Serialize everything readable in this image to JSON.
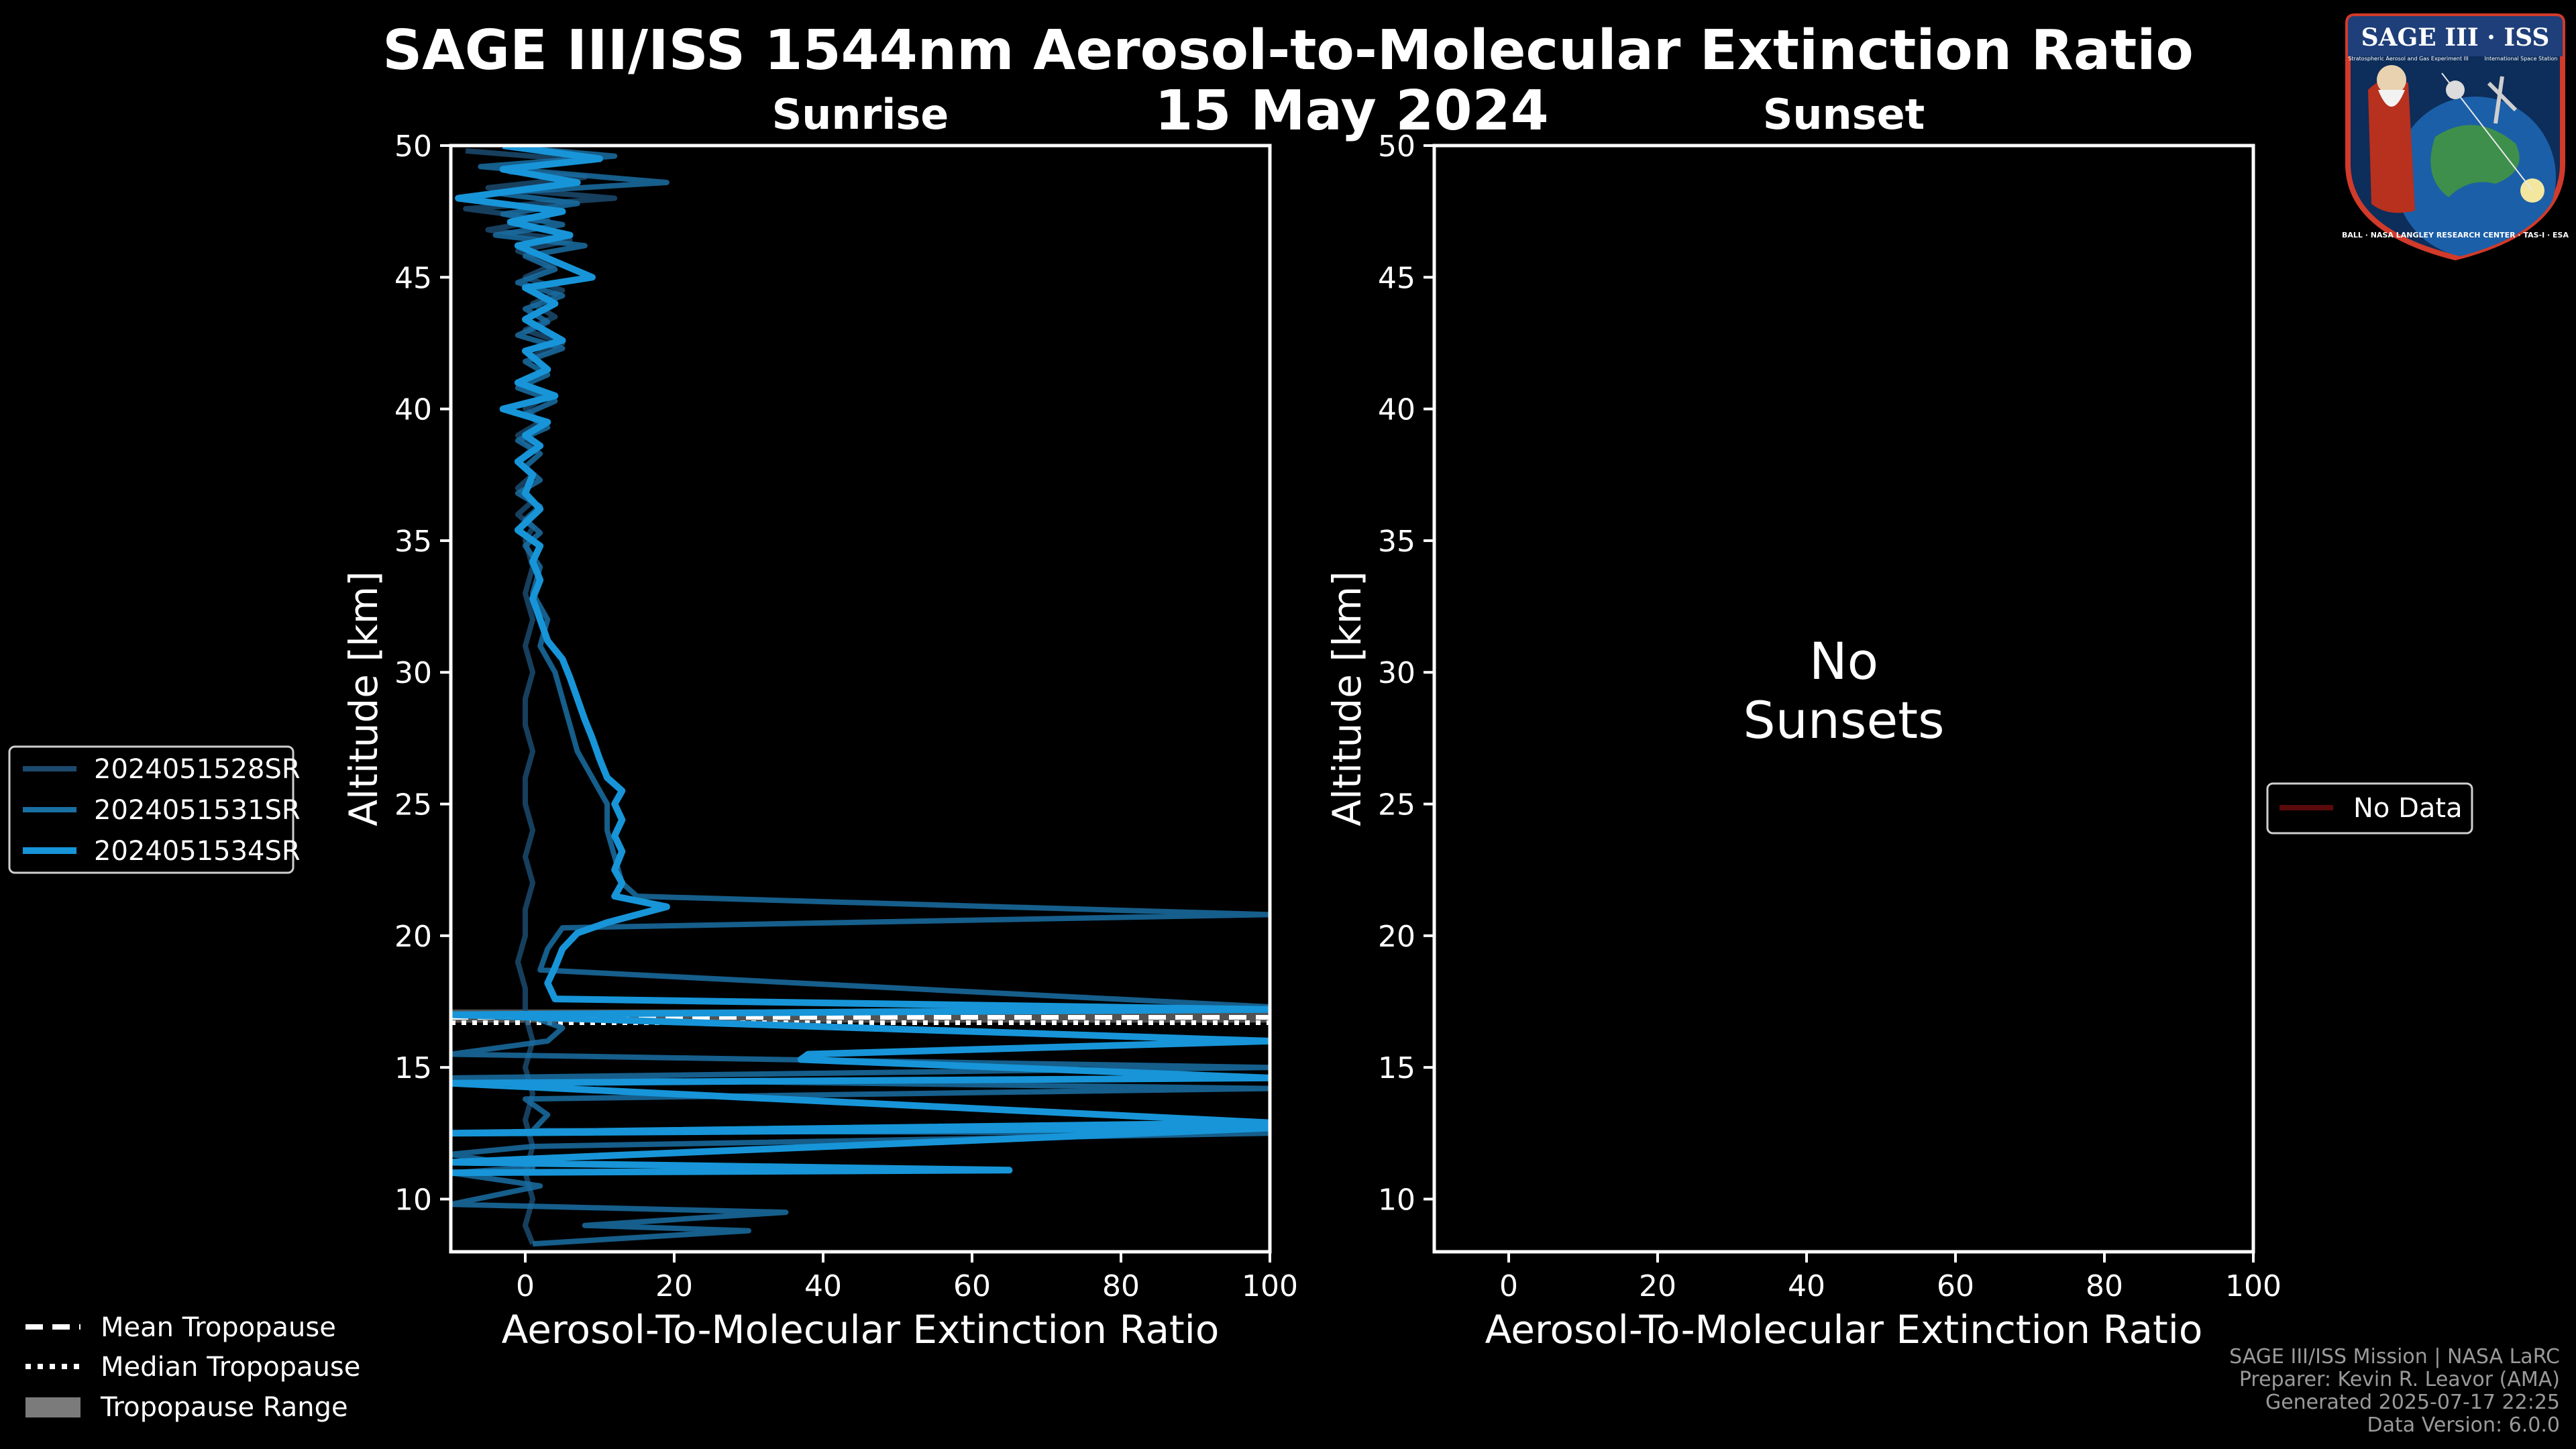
{
  "title": "SAGE III/ISS 1544nm Aerosol-to-Molecular Extinction Ratio",
  "subtitle": "15 May 2024",
  "colors": {
    "background": "#000000",
    "series": [
      "#1b4a6e",
      "#1a6fa3",
      "#1795d8"
    ],
    "no_data": "#5a0a0a",
    "tropopause_range": "#888888"
  },
  "chart_data": [
    {
      "type": "line",
      "title": "Sunrise",
      "xlabel": "Aerosol-To-Molecular Extinction Ratio",
      "ylabel": "Altitude [km]",
      "xlim": [
        -10,
        100
      ],
      "ylim": [
        8,
        50
      ],
      "xticks": [
        0,
        20,
        40,
        60,
        80,
        100
      ],
      "yticks": [
        10,
        15,
        20,
        25,
        30,
        35,
        40,
        45,
        50
      ],
      "legend": [
        "2024051528SR",
        "2024051531SR",
        "2024051534SR"
      ],
      "legend_location": "left",
      "tropopause": {
        "mean": 16.8,
        "median": 16.8,
        "range": [
          16.7,
          17.2
        ]
      },
      "series": [
        {
          "name": "2024051528SR",
          "points": [
            [
              -8,
              49.8
            ],
            [
              5,
              49.5
            ],
            [
              -2,
              49
            ],
            [
              8,
              48.8
            ],
            [
              -5,
              48.4
            ],
            [
              12,
              48
            ],
            [
              -8,
              47.6
            ],
            [
              3,
              47.2
            ],
            [
              -5,
              46.8
            ],
            [
              6,
              46.4
            ],
            [
              -1,
              46
            ],
            [
              4,
              45.5
            ],
            [
              0,
              45
            ],
            [
              5,
              44.5
            ],
            [
              1,
              44
            ],
            [
              4,
              43.5
            ],
            [
              0,
              43
            ],
            [
              5,
              42.5
            ],
            [
              1,
              42
            ],
            [
              3,
              41.5
            ],
            [
              -1,
              41
            ],
            [
              3,
              40.5
            ],
            [
              0,
              40
            ],
            [
              2,
              39.5
            ],
            [
              -1,
              39
            ],
            [
              1,
              38.5
            ],
            [
              -1,
              38
            ],
            [
              1,
              37.5
            ],
            [
              -1,
              37
            ],
            [
              1,
              36.5
            ],
            [
              -1,
              36
            ],
            [
              1,
              35.5
            ],
            [
              0,
              35
            ],
            [
              1,
              34
            ],
            [
              0,
              33
            ],
            [
              1,
              32
            ],
            [
              0,
              31
            ],
            [
              1,
              30
            ],
            [
              0,
              29
            ],
            [
              0,
              28
            ],
            [
              1,
              27
            ],
            [
              0,
              26
            ],
            [
              0,
              25
            ],
            [
              1,
              24
            ],
            [
              0,
              23
            ],
            [
              1,
              22
            ],
            [
              0,
              21
            ],
            [
              0,
              20
            ],
            [
              -1,
              19
            ],
            [
              0,
              18
            ],
            [
              0,
              17
            ],
            [
              1,
              16
            ],
            [
              0,
              15
            ],
            [
              1,
              14
            ],
            [
              0,
              13
            ],
            [
              1,
              12
            ],
            [
              0,
              11
            ],
            [
              1,
              10
            ],
            [
              0,
              9
            ],
            [
              1,
              8.3
            ]
          ]
        },
        {
          "name": "2024051531SR",
          "points": [
            [
              0,
              49.9
            ],
            [
              12,
              49.6
            ],
            [
              -6,
              49.2
            ],
            [
              19,
              48.6
            ],
            [
              -4,
              48.2
            ],
            [
              7,
              47.8
            ],
            [
              -3,
              47.4
            ],
            [
              5,
              47
            ],
            [
              -4,
              46.6
            ],
            [
              8,
              46.2
            ],
            [
              0,
              45.8
            ],
            [
              4,
              45.3
            ],
            [
              -1,
              44.8
            ],
            [
              5,
              44.3
            ],
            [
              0,
              43.8
            ],
            [
              3,
              43.3
            ],
            [
              -1,
              42.8
            ],
            [
              5,
              42.3
            ],
            [
              0,
              41.8
            ],
            [
              3,
              41.3
            ],
            [
              -1,
              40.8
            ],
            [
              4,
              40.3
            ],
            [
              0,
              39.8
            ],
            [
              3,
              39.3
            ],
            [
              -1,
              38.8
            ],
            [
              2,
              38.3
            ],
            [
              0,
              37.8
            ],
            [
              2,
              37.3
            ],
            [
              -1,
              36.8
            ],
            [
              2,
              36.3
            ],
            [
              0,
              35.8
            ],
            [
              2,
              35.3
            ],
            [
              0,
              34.8
            ],
            [
              2,
              34
            ],
            [
              1,
              33
            ],
            [
              3,
              32
            ],
            [
              2,
              31
            ],
            [
              4,
              30
            ],
            [
              5,
              29
            ],
            [
              6,
              28
            ],
            [
              7,
              27
            ],
            [
              9,
              26
            ],
            [
              11,
              25
            ],
            [
              11,
              24
            ],
            [
              12,
              23
            ],
            [
              13,
              22
            ],
            [
              15,
              21.5
            ],
            [
              100,
              20.8
            ],
            [
              5,
              20.3
            ],
            [
              3,
              19.5
            ],
            [
              2,
              18.7
            ],
            [
              100,
              17.3
            ],
            [
              0,
              17
            ],
            [
              5,
              16.5
            ],
            [
              3,
              16
            ],
            [
              -10,
              15.5
            ],
            [
              100,
              15
            ],
            [
              -10,
              14.6
            ],
            [
              100,
              14.2
            ],
            [
              0,
              13.8
            ],
            [
              3,
              13.2
            ],
            [
              1,
              12.6
            ],
            [
              100,
              12.5
            ],
            [
              1,
              12
            ],
            [
              -10,
              11.7
            ],
            [
              1,
              11.2
            ],
            [
              -10,
              11
            ],
            [
              2,
              10.5
            ],
            [
              -10,
              9.8
            ],
            [
              35,
              9.5
            ],
            [
              8,
              9
            ],
            [
              30,
              8.8
            ],
            [
              1,
              8.3
            ]
          ]
        },
        {
          "name": "2024051534SR",
          "points": [
            [
              -3,
              50
            ],
            [
              10,
              49.5
            ],
            [
              -3,
              49.1
            ],
            [
              7,
              48.6
            ],
            [
              -9,
              48
            ],
            [
              5,
              47.5
            ],
            [
              -2,
              47.1
            ],
            [
              6,
              46.6
            ],
            [
              -1,
              46.2
            ],
            [
              9,
              45
            ],
            [
              0,
              44.6
            ],
            [
              4,
              44
            ],
            [
              0,
              43.4
            ],
            [
              5,
              42.6
            ],
            [
              0,
              42.2
            ],
            [
              3,
              41.5
            ],
            [
              -1,
              41
            ],
            [
              4,
              40.5
            ],
            [
              -3,
              40
            ],
            [
              3,
              39.5
            ],
            [
              0,
              39
            ],
            [
              2,
              38.6
            ],
            [
              -1,
              38
            ],
            [
              1,
              37.5
            ],
            [
              0,
              36.8
            ],
            [
              2,
              36.2
            ],
            [
              -1,
              35.4
            ],
            [
              2,
              34.8
            ],
            [
              1,
              34.2
            ],
            [
              2,
              33.5
            ],
            [
              1,
              32.8
            ],
            [
              2,
              32
            ],
            [
              3,
              31.2
            ],
            [
              5,
              30.5
            ],
            [
              6,
              29.8
            ],
            [
              7,
              29
            ],
            [
              8,
              28.2
            ],
            [
              9,
              27.5
            ],
            [
              10,
              26.7
            ],
            [
              11,
              26
            ],
            [
              13,
              25.5
            ],
            [
              12,
              25
            ],
            [
              13,
              24.4
            ],
            [
              12,
              23.8
            ],
            [
              13,
              23.2
            ],
            [
              12,
              22.5
            ],
            [
              13,
              22
            ],
            [
              12,
              21.5
            ],
            [
              19,
              21.1
            ],
            [
              11,
              20.5
            ],
            [
              7,
              20.1
            ],
            [
              5,
              19.5
            ],
            [
              4,
              18.8
            ],
            [
              3,
              18.2
            ],
            [
              4,
              17.6
            ],
            [
              100,
              17.2
            ],
            [
              -10,
              17
            ],
            [
              100,
              16
            ],
            [
              38,
              15.5
            ],
            [
              37,
              15.3
            ],
            [
              100,
              14.6
            ],
            [
              -10,
              14.4
            ],
            [
              100,
              12.9
            ],
            [
              -10,
              12.5
            ],
            [
              100,
              12.7
            ],
            [
              -10,
              11.4
            ],
            [
              65,
              11.1
            ],
            [
              -10,
              11
            ]
          ]
        }
      ]
    },
    {
      "type": "line",
      "title": "Sunset",
      "xlabel": "Aerosol-To-Molecular Extinction Ratio",
      "ylabel": "Altitude [km]",
      "xlim": [
        -10,
        100
      ],
      "ylim": [
        8,
        50
      ],
      "xticks": [
        0,
        20,
        40,
        60,
        80,
        100
      ],
      "yticks": [
        10,
        15,
        20,
        25,
        30,
        35,
        40,
        45,
        50
      ],
      "legend": [
        "No Data"
      ],
      "legend_location": "right",
      "annotation": [
        "No",
        "Sunsets"
      ],
      "series": []
    }
  ],
  "tropopause_legend": [
    "Mean Tropopause",
    "Median Tropopause",
    "Tropopause Range"
  ],
  "footer": [
    "SAGE III/ISS Mission | NASA LaRC",
    "Preparer: Kevin R. Leavor (AMA)",
    "Generated 2025-07-17 22:25",
    "Data Version: 6.0.0"
  ],
  "logo": {
    "title": "SAGE III · ISS",
    "subtitle": "Stratospheric Aerosol and Gas Experiment III",
    "right_text": "International Space Station",
    "ring_text": "BALL · NASA LANGLEY RESEARCH CENTER · TAS-I · ESA"
  }
}
